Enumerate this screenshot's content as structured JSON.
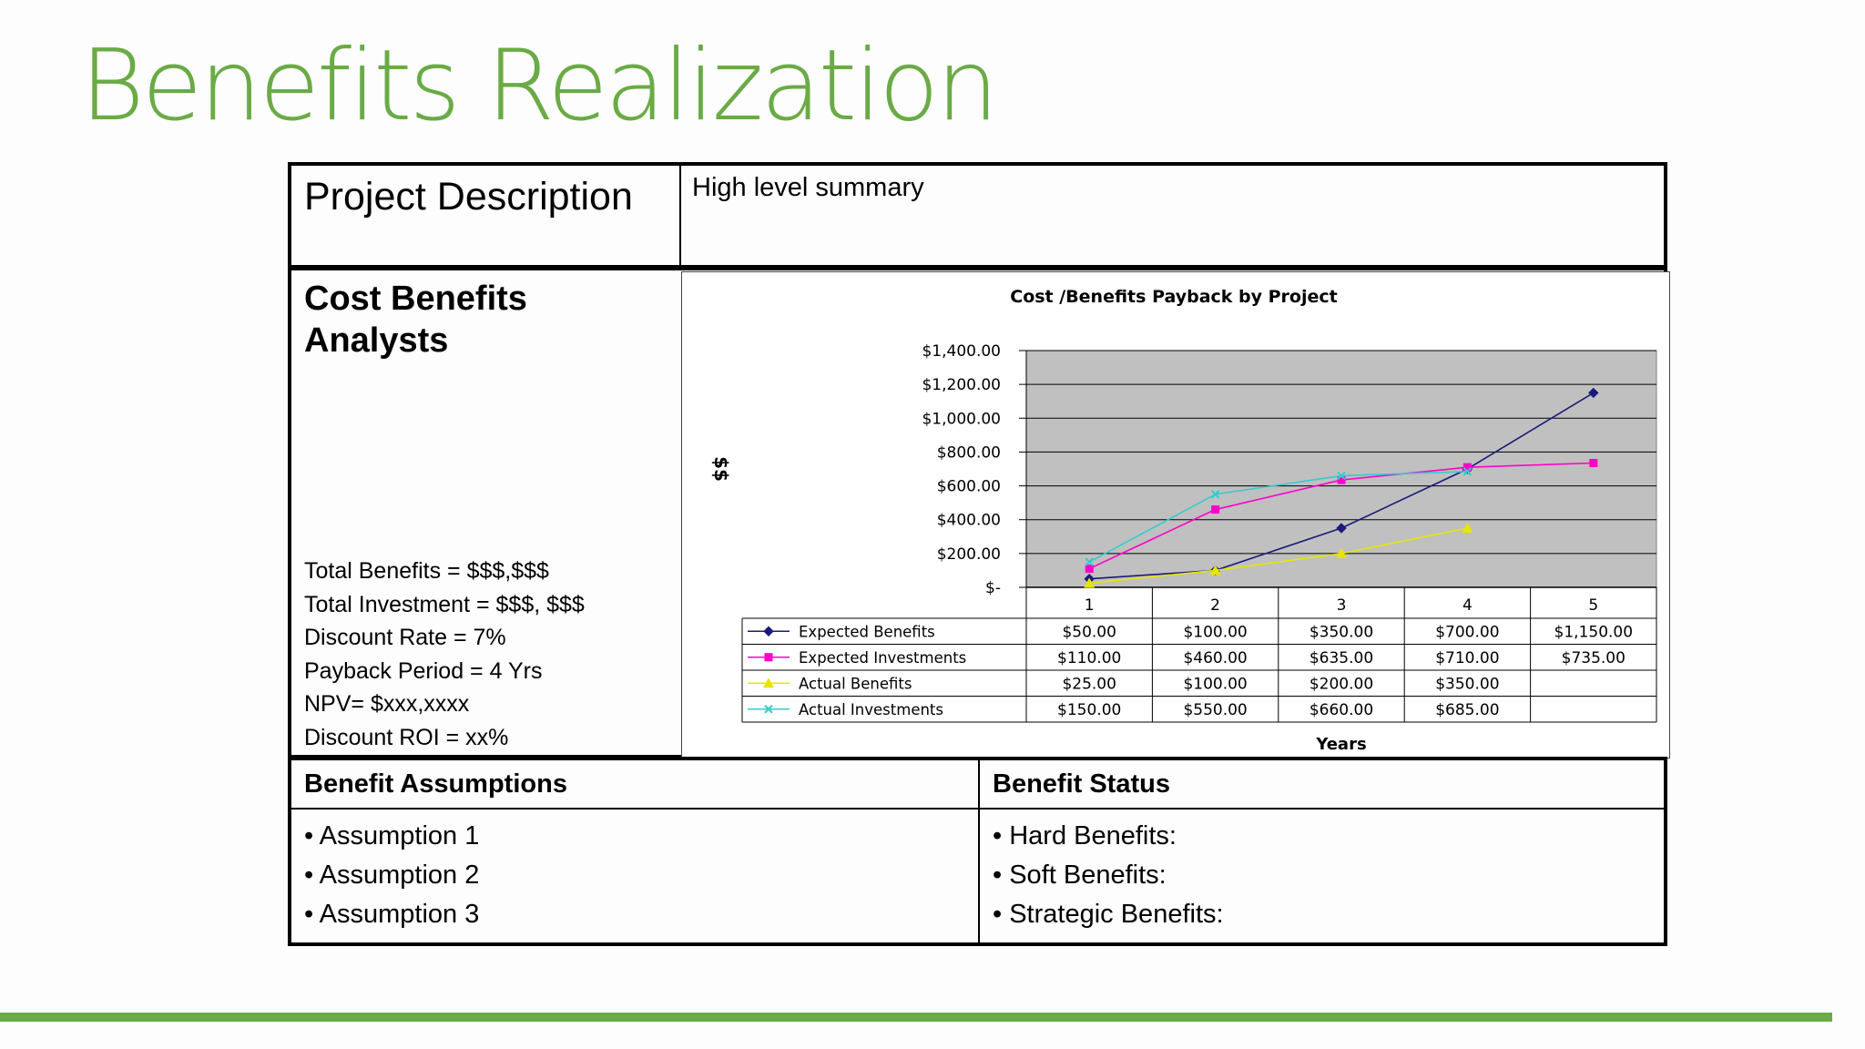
{
  "slide": {
    "title": "Benefits Realization"
  },
  "project": {
    "label": "Project Description",
    "summary": "High level summary"
  },
  "cost_benefits": {
    "title": "Cost Benefits Analysts",
    "metrics": [
      "Total Benefits = $$$,$$$",
      "Total Investment = $$$, $$$",
      "Discount Rate = 7%",
      "Payback Period = 4 Yrs",
      "NPV= $xxx,xxxx",
      "Discount ROI = xx%"
    ]
  },
  "assumptions": {
    "heading": "Benefit Assumptions",
    "items": [
      "Assumption 1",
      "Assumption 2",
      "Assumption 3"
    ]
  },
  "status": {
    "heading": "Benefit Status",
    "items": [
      "Hard Benefits:",
      "Soft Benefits:",
      "Strategic Benefits:"
    ]
  },
  "colors": {
    "accent": "#6aab45",
    "plot_bg": "#c0c0c0"
  },
  "chart_data": {
    "type": "line",
    "title": "Cost /Benefits Payback by Project",
    "xlabel": "Years",
    "ylabel": "$$",
    "x": [
      1,
      2,
      3,
      4,
      5
    ],
    "ylim": [
      0,
      1400
    ],
    "yticks": [
      0,
      200,
      400,
      600,
      800,
      1000,
      1200,
      1400
    ],
    "ytick_labels": [
      "$-",
      "$200.00",
      "$400.00",
      "$600.00",
      "$800.00",
      "$1,000.00",
      "$1,200.00",
      "$1,400.00"
    ],
    "grid": true,
    "legend": "data-table",
    "series": [
      {
        "name": "Expected Benefits",
        "color": "#1a1a7a",
        "marker": "diamond",
        "values": [
          50,
          100,
          350,
          700,
          1150
        ],
        "labels": [
          "$50.00",
          "$100.00",
          "$350.00",
          "$700.00",
          "$1,150.00"
        ]
      },
      {
        "name": "Expected Investments",
        "color": "#ff00cc",
        "marker": "square",
        "values": [
          110,
          460,
          635,
          710,
          735
        ],
        "labels": [
          "$110.00",
          "$460.00",
          "$635.00",
          "$710.00",
          "$735.00"
        ]
      },
      {
        "name": "Actual Benefits",
        "color": "#e6e600",
        "marker": "triangle",
        "values": [
          25,
          100,
          200,
          350,
          null
        ],
        "labels": [
          "$25.00",
          "$100.00",
          "$200.00",
          "$350.00",
          ""
        ]
      },
      {
        "name": "Actual Investments",
        "color": "#33cccc",
        "marker": "x",
        "values": [
          150,
          550,
          660,
          685,
          null
        ],
        "labels": [
          "$150.00",
          "$550.00",
          "$660.00",
          "$685.00",
          ""
        ]
      }
    ]
  }
}
